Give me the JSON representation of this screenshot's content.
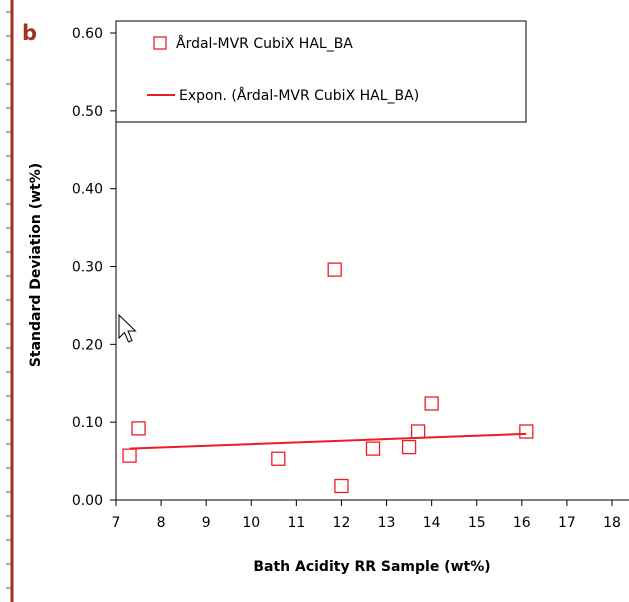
{
  "colors": {
    "series": "#ee1c25",
    "accent_line": "#a0341e",
    "panel_label": "#a0341e",
    "axis": "#000000"
  },
  "chart_data": {
    "type": "scatter",
    "panel_label": "b",
    "xlabel": "Bath Acidity RR Sample (wt%)",
    "ylabel": "Standard Deviation (wt%)",
    "xlim": [
      7,
      18
    ],
    "ylim": [
      0,
      0.6
    ],
    "x_ticks": [
      "7",
      "8",
      "9",
      "10",
      "11",
      "12",
      "13",
      "14",
      "15",
      "16",
      "17",
      "18"
    ],
    "y_ticks": [
      "0.00",
      "0.10",
      "0.20",
      "0.30",
      "0.40",
      "0.50",
      "0.60"
    ],
    "grid": false,
    "legend_placement": "top-left",
    "series": [
      {
        "name": "Årdal-MVR CubiX HAL_BA",
        "marker": "hollow-square",
        "points": [
          {
            "x": 7.3,
            "y": 0.057
          },
          {
            "x": 7.5,
            "y": 0.092
          },
          {
            "x": 10.6,
            "y": 0.053
          },
          {
            "x": 11.85,
            "y": 0.296
          },
          {
            "x": 12.0,
            "y": 0.018
          },
          {
            "x": 12.7,
            "y": 0.066
          },
          {
            "x": 13.5,
            "y": 0.068
          },
          {
            "x": 13.7,
            "y": 0.088
          },
          {
            "x": 14.0,
            "y": 0.124
          },
          {
            "x": 16.1,
            "y": 0.088
          }
        ]
      },
      {
        "name": "Expon. (Årdal-MVR CubiX HAL_BA)",
        "type": "trendline",
        "fit": "exponential",
        "from": {
          "x": 7.3,
          "y": 0.066
        },
        "to": {
          "x": 16.1,
          "y": 0.085
        }
      }
    ]
  }
}
